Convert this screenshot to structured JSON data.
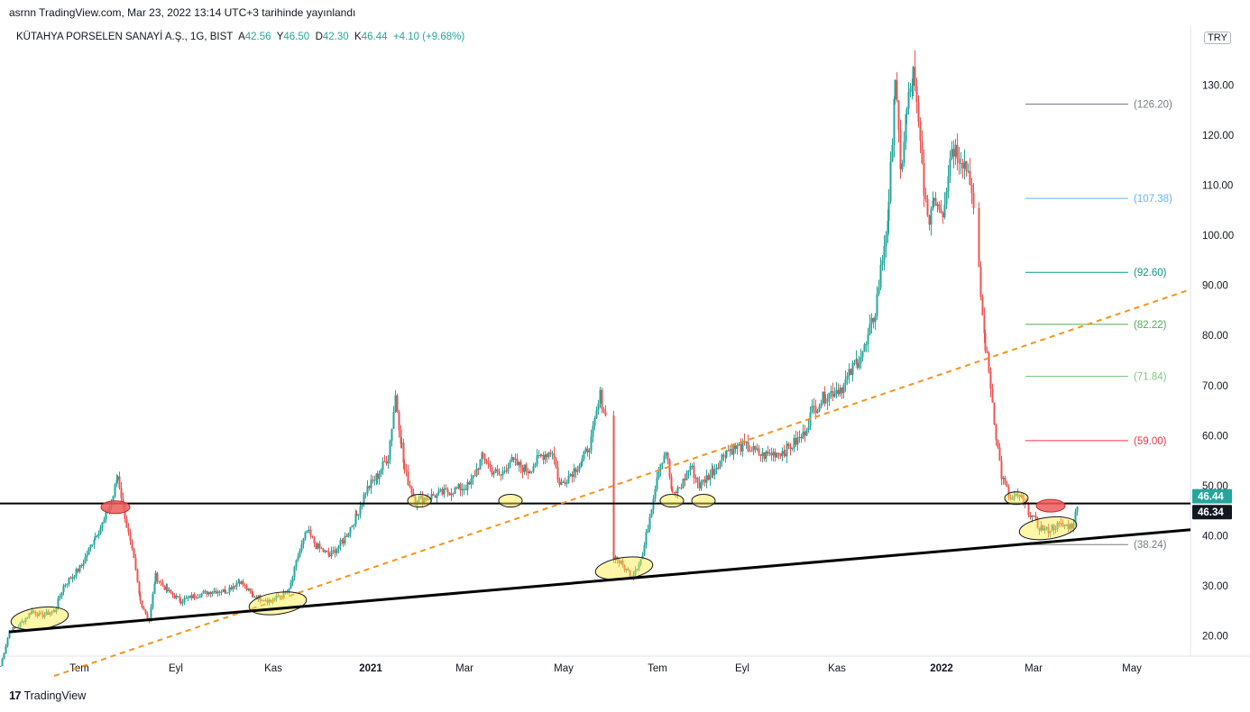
{
  "header": {
    "text": "asrnn TradingView.com, Mar 23, 2022 13:14 UTC+3 tarihinde yayınlandı"
  },
  "symbol": {
    "name": "KÜTAHYA PORSELEN SANAYİ A.Ş., 1G, BIST",
    "open_label": "A",
    "open": "42.56",
    "high_label": "Y",
    "high": "46.50",
    "low_label": "D",
    "low": "42.30",
    "close_label": "K",
    "close": "46.44",
    "change": "+4.10 (+9.68%)"
  },
  "currency": "TRY",
  "footer": {
    "logo": "17",
    "brand": "TradingView"
  },
  "colors": {
    "up": "#26a69a",
    "down": "#ef5350",
    "trend": "#000000",
    "dashed": "#f7931a",
    "ellipse": "#ffeb3b",
    "red_mark": "#f05a5a"
  },
  "chart_data": {
    "type": "candlestick",
    "y_axis": {
      "min": 12,
      "max": 138,
      "ticks": [
        20,
        30,
        40,
        50,
        60,
        70,
        80,
        90,
        100,
        110,
        120,
        130
      ],
      "tick_labels": [
        "20.00",
        "30.00",
        "40.00",
        "50.00",
        "60.00",
        "70.00",
        "80.00",
        "90.00",
        "100.00",
        "110.00",
        "120.00",
        "130.00"
      ]
    },
    "x_axis": {
      "tick_labels": [
        "Tem",
        "Eyl",
        "Kas",
        "2021",
        "Mar",
        "May",
        "Tem",
        "Eyl",
        "Kas",
        "2022",
        "Mar",
        "May"
      ],
      "tick_index": [
        88,
        195,
        303,
        411,
        515,
        625,
        729,
        823,
        928,
        1044,
        1146,
        1255
      ]
    },
    "price_path": [
      [
        0,
        14
      ],
      [
        10,
        21
      ],
      [
        20,
        22
      ],
      [
        35,
        25
      ],
      [
        45,
        24
      ],
      [
        60,
        25
      ],
      [
        70,
        30
      ],
      [
        90,
        34
      ],
      [
        105,
        40
      ],
      [
        115,
        43
      ],
      [
        125,
        48
      ],
      [
        130,
        52
      ],
      [
        140,
        42
      ],
      [
        148,
        35
      ],
      [
        155,
        27
      ],
      [
        165,
        23
      ],
      [
        172,
        32
      ],
      [
        185,
        29
      ],
      [
        200,
        27
      ],
      [
        215,
        28
      ],
      [
        235,
        29
      ],
      [
        250,
        29
      ],
      [
        265,
        31
      ],
      [
        280,
        28
      ],
      [
        300,
        27
      ],
      [
        320,
        29
      ],
      [
        330,
        36
      ],
      [
        340,
        41
      ],
      [
        350,
        38
      ],
      [
        365,
        36
      ],
      [
        380,
        39
      ],
      [
        395,
        44
      ],
      [
        405,
        49
      ],
      [
        418,
        52
      ],
      [
        430,
        56
      ],
      [
        438,
        68
      ],
      [
        445,
        58
      ],
      [
        448,
        53
      ],
      [
        460,
        47
      ],
      [
        480,
        48
      ],
      [
        500,
        49
      ],
      [
        520,
        50
      ],
      [
        535,
        56
      ],
      [
        545,
        53
      ],
      [
        555,
        52
      ],
      [
        565,
        55
      ],
      [
        575,
        54
      ],
      [
        585,
        53
      ],
      [
        600,
        56
      ],
      [
        612,
        57
      ],
      [
        620,
        50
      ],
      [
        630,
        52
      ],
      [
        645,
        55
      ],
      [
        655,
        59
      ],
      [
        665,
        68
      ],
      [
        672,
        63
      ],
      [
        680,
        36
      ],
      [
        690,
        34
      ],
      [
        700,
        32
      ],
      [
        712,
        36
      ],
      [
        722,
        46
      ],
      [
        730,
        54
      ],
      [
        738,
        57
      ],
      [
        745,
        48
      ],
      [
        755,
        50
      ],
      [
        765,
        54
      ],
      [
        775,
        50
      ],
      [
        790,
        53
      ],
      [
        805,
        57
      ],
      [
        825,
        58
      ],
      [
        845,
        56
      ],
      [
        870,
        57
      ],
      [
        890,
        60
      ],
      [
        900,
        65
      ],
      [
        915,
        68
      ],
      [
        935,
        70
      ],
      [
        950,
        75
      ],
      [
        960,
        78
      ],
      [
        970,
        85
      ],
      [
        985,
        105
      ],
      [
        992,
        132
      ],
      [
        998,
        112
      ],
      [
        1005,
        125
      ],
      [
        1012,
        132
      ],
      [
        1020,
        118
      ],
      [
        1028,
        102
      ],
      [
        1035,
        108
      ],
      [
        1045,
        105
      ],
      [
        1055,
        118
      ],
      [
        1065,
        116
      ],
      [
        1075,
        112
      ],
      [
        1080,
        102
      ],
      [
        1085,
        92
      ],
      [
        1092,
        78
      ],
      [
        1098,
        70
      ],
      [
        1104,
        60
      ],
      [
        1110,
        52
      ],
      [
        1120,
        47
      ],
      [
        1130,
        48
      ],
      [
        1140,
        45
      ],
      [
        1150,
        42
      ],
      [
        1160,
        41
      ],
      [
        1170,
        42
      ],
      [
        1180,
        42
      ],
      [
        1188,
        42
      ],
      [
        1195,
        46
      ]
    ],
    "fib_levels": [
      {
        "label": "(126.20)",
        "value": 126.2,
        "color": "#787b86"
      },
      {
        "label": "(107.38)",
        "value": 107.38,
        "color": "#64b5f6"
      },
      {
        "label": "(92.60)",
        "value": 92.6,
        "color": "#089981"
      },
      {
        "label": "(82.22)",
        "value": 82.22,
        "color": "#4caf50"
      },
      {
        "label": "(71.84)",
        "value": 71.84,
        "color": "#81c784"
      },
      {
        "label": "(59.00)",
        "value": 59.0,
        "color": "#f23645"
      },
      {
        "label": "(38.24)",
        "value": 38.24,
        "color": "#787b86"
      }
    ],
    "horizontal_line": 46.44,
    "trendline": {
      "from": [
        10,
        20.8
      ],
      "to": [
        1320,
        41.2
      ]
    },
    "dashed_line": {
      "from": [
        60,
        12
      ],
      "to": [
        1320,
        89.2
      ]
    },
    "price_labels": [
      {
        "text": "46.44",
        "value": 46.44,
        "bg": "#26a69a",
        "fg": "#ffffff"
      },
      {
        "text": "46.34",
        "value": 46.34,
        "bg": "#131722",
        "fg": "#ffffff"
      }
    ],
    "ellipses": [
      {
        "x": 44,
        "y": 23.5,
        "kind": "yellow"
      },
      {
        "x": 308,
        "y": 26.5,
        "kind": "yellow"
      },
      {
        "x": 465,
        "y": 47,
        "kind": "yellow"
      },
      {
        "x": 566,
        "y": 47,
        "kind": "yellow"
      },
      {
        "x": 692,
        "y": 33.5,
        "kind": "yellow"
      },
      {
        "x": 745,
        "y": 47,
        "kind": "yellow"
      },
      {
        "x": 780,
        "y": 47,
        "kind": "yellow"
      },
      {
        "x": 1127,
        "y": 47.5,
        "kind": "yellow"
      },
      {
        "x": 1162,
        "y": 41.5,
        "kind": "yellow"
      },
      {
        "x": 128,
        "y": 45.7,
        "kind": "red"
      },
      {
        "x": 1165,
        "y": 46,
        "kind": "red"
      }
    ]
  }
}
